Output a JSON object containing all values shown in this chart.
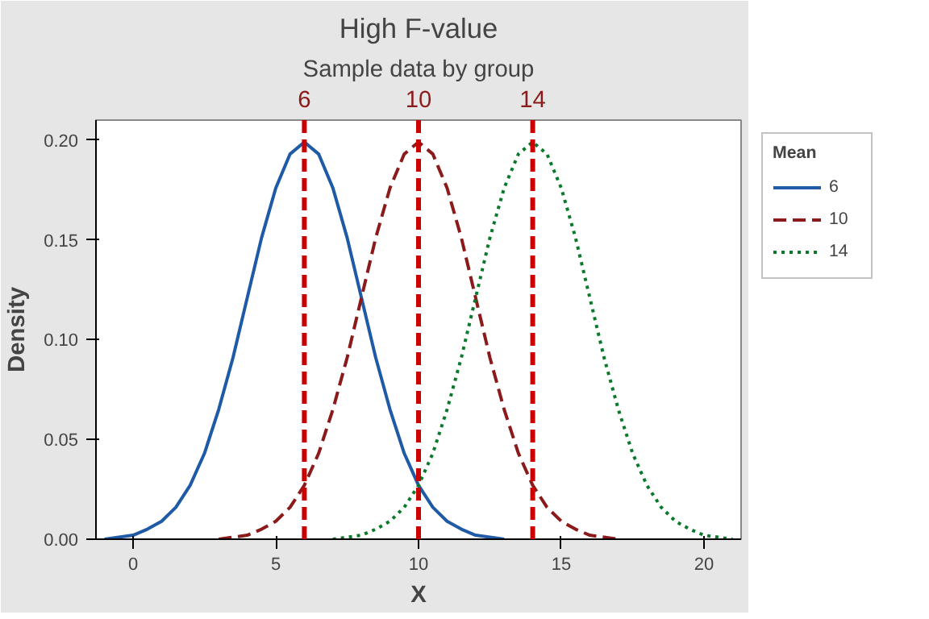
{
  "chart_data": {
    "type": "line",
    "title": "High F-value",
    "subtitle": "Sample data by group",
    "xlabel": "X",
    "ylabel": "Density",
    "legend_title": "Mean",
    "legend": "right",
    "xlim": [
      -1.3,
      21.3
    ],
    "xticks": [
      0,
      5,
      10,
      15,
      20
    ],
    "ylim": [
      0,
      0.21
    ],
    "yticks": [
      {
        "value": 0,
        "label": "0.00"
      },
      {
        "value": 0.05,
        "label": "0.05"
      },
      {
        "value": 0.1,
        "label": "0.10"
      },
      {
        "value": 0.15,
        "label": "0.15"
      },
      {
        "value": 0.2,
        "label": "0.20"
      }
    ],
    "grid": false,
    "marker": "none",
    "series": [
      {
        "name": "6",
        "color": "#1f5aa6",
        "line_style": "solid",
        "x": [
          -1,
          -0.5,
          0,
          0.5,
          1,
          1.5,
          2,
          2.5,
          3,
          3.5,
          4,
          4.5,
          5,
          5.5,
          6,
          6.5,
          7,
          7.5,
          8,
          8.5,
          9,
          9.5,
          10,
          10.5,
          11,
          11.5,
          12,
          12.5,
          13
        ],
        "values": [
          0.0,
          0.001,
          0.002,
          0.005,
          0.009,
          0.016,
          0.027,
          0.043,
          0.065,
          0.091,
          0.121,
          0.151,
          0.176,
          0.193,
          0.199,
          0.193,
          0.176,
          0.151,
          0.121,
          0.091,
          0.065,
          0.043,
          0.027,
          0.016,
          0.009,
          0.005,
          0.002,
          0.001,
          0.0
        ]
      },
      {
        "name": "10",
        "color": "#8b1a1a",
        "line_style": "dashed",
        "x": [
          3,
          3.5,
          4,
          4.5,
          5,
          5.5,
          6,
          6.5,
          7,
          7.5,
          8,
          8.5,
          9,
          9.5,
          10,
          10.5,
          11,
          11.5,
          12,
          12.5,
          13,
          13.5,
          14,
          14.5,
          15,
          15.5,
          16,
          16.5,
          17
        ],
        "values": [
          0.0,
          0.001,
          0.002,
          0.005,
          0.009,
          0.016,
          0.027,
          0.043,
          0.065,
          0.091,
          0.121,
          0.151,
          0.176,
          0.193,
          0.199,
          0.193,
          0.176,
          0.151,
          0.121,
          0.091,
          0.065,
          0.043,
          0.027,
          0.016,
          0.009,
          0.005,
          0.002,
          0.001,
          0.0
        ]
      },
      {
        "name": "14",
        "color": "#0a7a2a",
        "line_style": "dotted",
        "x": [
          7,
          7.5,
          8,
          8.5,
          9,
          9.5,
          10,
          10.5,
          11,
          11.5,
          12,
          12.5,
          13,
          13.5,
          14,
          14.5,
          15,
          15.5,
          16,
          16.5,
          17,
          17.5,
          18,
          18.5,
          19,
          19.5,
          20,
          20.5,
          21
        ],
        "values": [
          0.0,
          0.001,
          0.002,
          0.005,
          0.009,
          0.016,
          0.027,
          0.043,
          0.065,
          0.091,
          0.121,
          0.151,
          0.176,
          0.193,
          0.199,
          0.193,
          0.176,
          0.151,
          0.121,
          0.091,
          0.065,
          0.043,
          0.027,
          0.016,
          0.009,
          0.005,
          0.002,
          0.001,
          0.0
        ]
      }
    ],
    "ref_lines": [
      {
        "axis": "x",
        "value": 6,
        "label": "6",
        "color": "#cc0000",
        "line_style": "dashed"
      },
      {
        "axis": "x",
        "value": 10,
        "label": "10",
        "color": "#cc0000",
        "line_style": "dashed"
      },
      {
        "axis": "x",
        "value": 14,
        "label": "14",
        "color": "#cc0000",
        "line_style": "dashed"
      }
    ]
  }
}
